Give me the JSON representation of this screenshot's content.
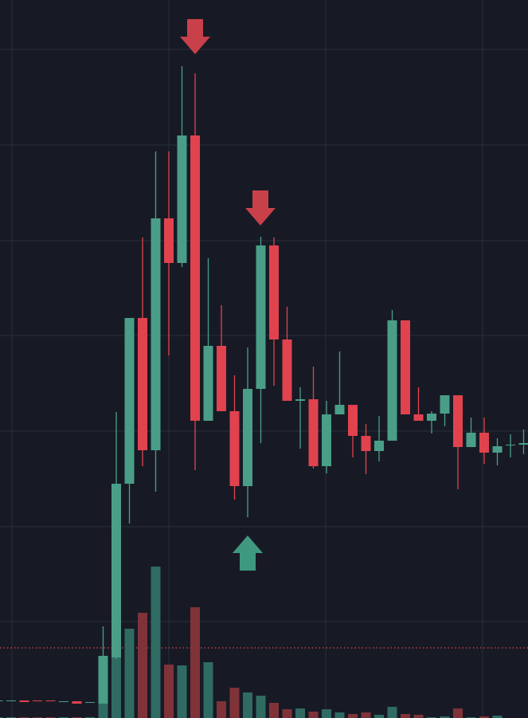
{
  "chart_data": {
    "type": "candlestick",
    "xlim": [
      0,
      663
    ],
    "xticks": [
      15,
      212,
      409,
      606
    ],
    "ylim": [
      0,
      901
    ],
    "yticks": [
      121,
      240,
      360,
      480,
      599,
      719,
      839
    ],
    "grid": true,
    "up_color": "#4a9e87",
    "down_color": "#e0434e",
    "volume_up_color": "#2f6b62",
    "volume_down_color": "#7f3339",
    "x": [
      -2.5,
      14,
      30.5,
      47,
      63.5,
      80,
      96.5,
      113,
      129.5,
      146,
      162.5,
      179,
      195.5,
      212,
      228.5,
      245,
      261.5,
      278,
      294.5,
      311,
      327.5,
      344,
      360.5,
      377,
      393.5,
      410,
      426.5,
      443,
      459.5,
      476,
      492.5,
      509,
      525.5,
      542,
      558.5,
      575,
      591.5,
      608,
      624.5,
      641,
      657.5
    ],
    "open": [
      21,
      21,
      22,
      22,
      22,
      20,
      21,
      19,
      18,
      76,
      294,
      502,
      336,
      627,
      571,
      731,
      373,
      467,
      385,
      291,
      413,
      593,
      475,
      398,
      400,
      316,
      381,
      393,
      354,
      335,
      348,
      499,
      381,
      373,
      382,
      405,
      340,
      358,
      333,
      342,
      343
    ],
    "high": [
      22,
      22,
      22,
      22,
      22,
      21,
      21,
      20,
      115,
      384,
      502,
      603,
      711,
      711,
      818,
      809,
      577,
      518,
      430,
      465,
      604,
      603,
      516,
      415,
      441,
      398,
      460,
      393,
      369,
      379,
      512,
      499,
      415,
      385,
      405,
      405,
      377,
      377,
      351,
      356,
      362
    ],
    "low": [
      21,
      21,
      20,
      21,
      21,
      20,
      18,
      19,
      18,
      74,
      244,
      316,
      284,
      455,
      566,
      311,
      373,
      385,
      274,
      252,
      345,
      417,
      398,
      338,
      313,
      307,
      381,
      327,
      306,
      322,
      348,
      381,
      373,
      357,
      366,
      287,
      340,
      319,
      317,
      327,
      331
    ],
    "close": [
      22,
      22,
      20,
      21,
      21,
      21,
      18,
      20,
      78,
      294,
      502,
      336,
      627,
      571,
      731,
      373,
      467,
      385,
      291,
      413,
      593,
      475,
      398,
      400,
      316,
      381,
      393,
      354,
      335,
      348,
      499,
      381,
      373,
      382,
      405,
      340,
      358,
      333,
      341,
      343,
      345
    ],
    "volume": [
      1,
      1,
      1,
      1,
      1,
      1,
      1,
      1,
      38,
      241,
      112,
      132,
      190,
      67,
      66,
      139,
      70,
      21,
      38,
      32,
      28,
      19,
      11,
      12,
      8,
      11,
      7,
      5,
      7,
      4,
      14,
      5,
      4,
      1,
      2,
      12,
      1,
      2,
      3,
      0,
      0
    ],
    "price_line": 88,
    "price_line_color": "#e0434e",
    "markers": [
      {
        "x": 245,
        "y": 833,
        "direction": "down",
        "color": "#c8414a"
      },
      {
        "x": 327,
        "y": 618,
        "direction": "down",
        "color": "#c8414a"
      },
      {
        "x": 311,
        "y": 229,
        "direction": "up",
        "color": "#3f9880"
      }
    ]
  }
}
